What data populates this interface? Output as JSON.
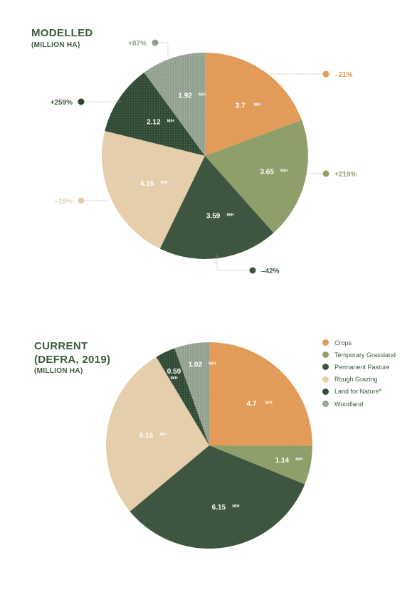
{
  "colors": {
    "crops": "#e29b58",
    "temporary_grassland": "#8f9f6a",
    "permanent_pasture": "#3e5640",
    "rough_grazing": "#e4ceab",
    "land_for_nature": "#2c4430",
    "woodland": "#8e9d8c",
    "label_text": "#ffffff",
    "title_text": "#3c5a3e",
    "leader_line": "#9aa39a"
  },
  "legend": {
    "items": [
      {
        "label": "Crops",
        "color": "#e29b58"
      },
      {
        "label": "Temporary Grassland",
        "color": "#8f9f6a"
      },
      {
        "label": "Permanent Pasture",
        "color": "#3e5640"
      },
      {
        "label": "Rough Grazing",
        "color": "#e4ceab"
      },
      {
        "label": "Land for Nature*",
        "color": "#2c4430",
        "pattern": "grid"
      },
      {
        "label": "Woodland",
        "color": "#8e9d8c",
        "pattern": "grid"
      }
    ]
  },
  "chart_data": [
    {
      "type": "pie",
      "title": "MODELLED",
      "subtitle": "(MILLION HA)",
      "unit": "M/H",
      "slices": [
        {
          "category": "Crops",
          "value": 3.7,
          "label": "3.7",
          "change": "–21%"
        },
        {
          "category": "Temporary Grassland",
          "value": 3.65,
          "label": "3.65",
          "change": "+219%"
        },
        {
          "category": "Permanent Pasture",
          "value": 3.59,
          "label": "3.59",
          "change": "–42%"
        },
        {
          "category": "Rough Grazing",
          "value": 4.15,
          "label": "4.15",
          "change": "–19%"
        },
        {
          "category": "Land for Nature*",
          "value": 2.12,
          "label": "2.12",
          "change": "+259%"
        },
        {
          "category": "Woodland",
          "value": 1.92,
          "label": "1.92",
          "change": "+87%"
        }
      ]
    },
    {
      "type": "pie",
      "title": "CURRENT (DEFRA, 2019)",
      "subtitle": "(MILLION HA)",
      "unit": "M/H",
      "slices": [
        {
          "category": "Crops",
          "value": 4.7,
          "label": "4.7"
        },
        {
          "category": "Temporary Grassland",
          "value": 1.14,
          "label": "1.14"
        },
        {
          "category": "Permanent Pasture",
          "value": 6.15,
          "label": "6.15"
        },
        {
          "category": "Rough Grazing",
          "value": 5.15,
          "label": "5.15"
        },
        {
          "category": "Land for Nature*",
          "value": 0.59,
          "label": "0.59"
        },
        {
          "category": "Woodland",
          "value": 1.02,
          "label": "1.02"
        }
      ]
    }
  ]
}
